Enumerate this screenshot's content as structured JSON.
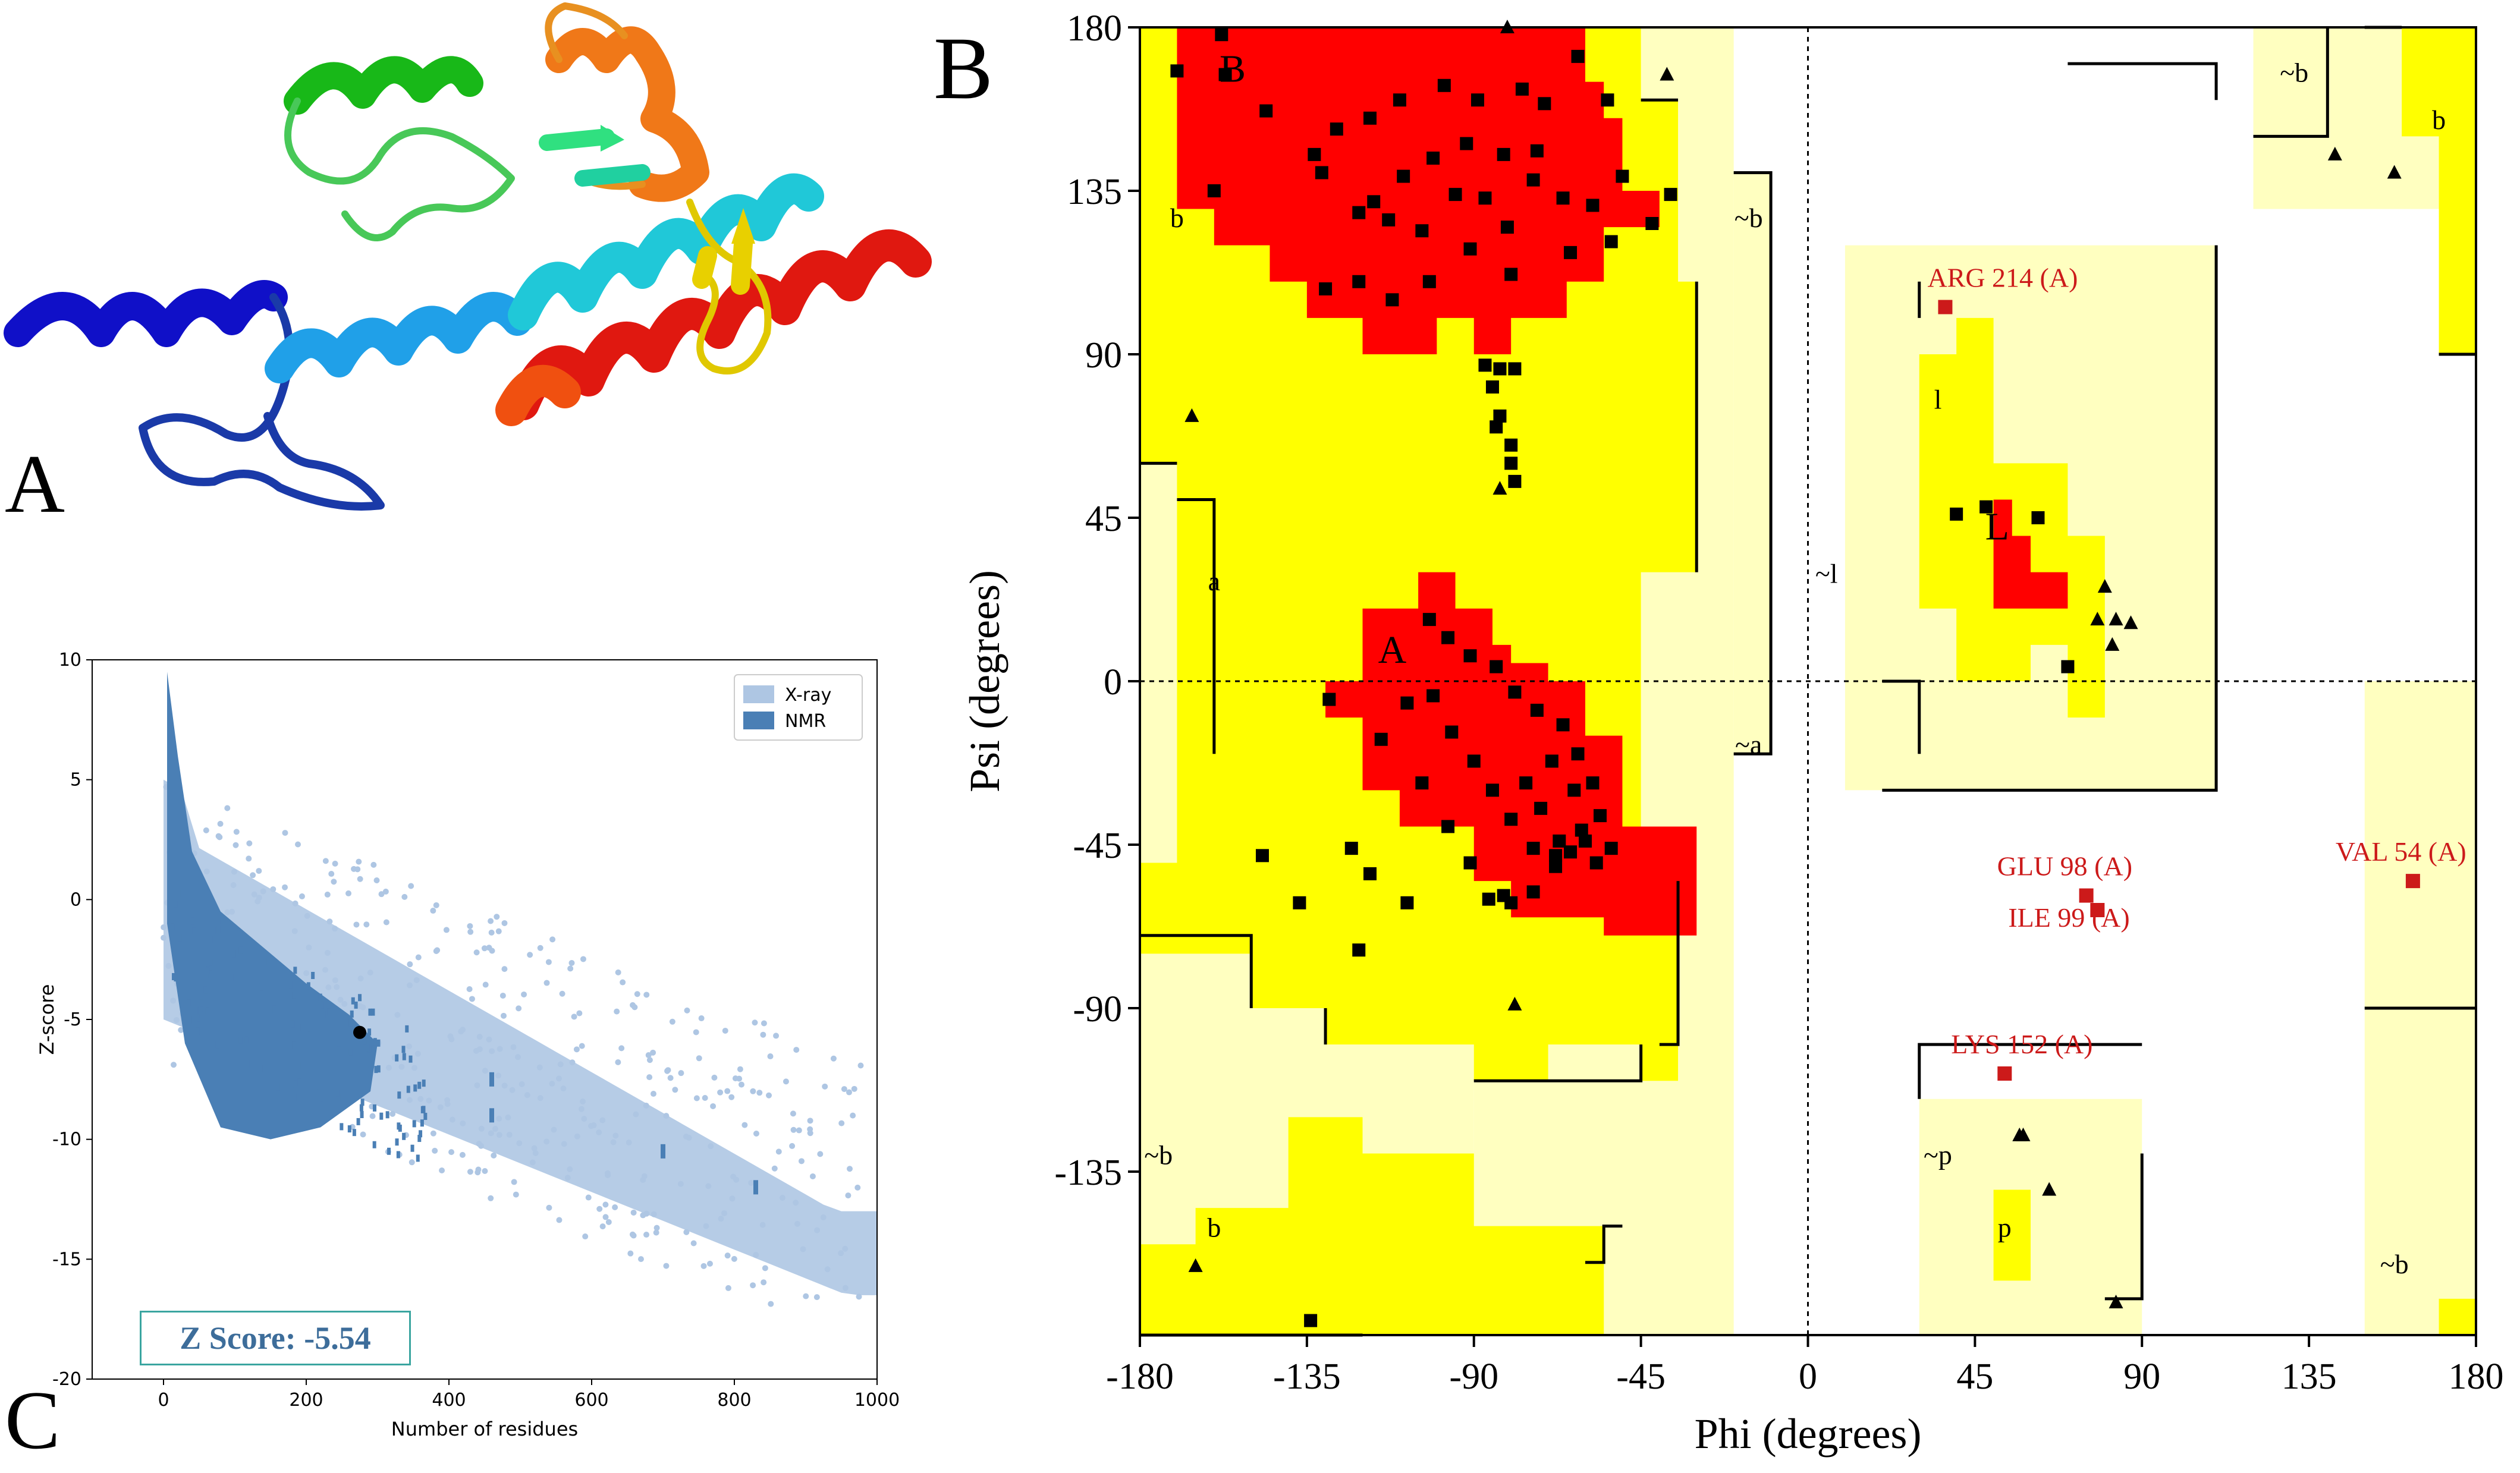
{
  "figure": {
    "panel_labels": {
      "a": "A",
      "b": "B",
      "c": "C"
    },
    "colors": {
      "core": "#ff0000",
      "allowed": "#ffff00",
      "generous": "#ffffc0",
      "outlier": "#cc1a1a",
      "xray": "#aec6e3",
      "nmr": "#4a7fb5",
      "helix_blue": "#1010c8",
      "helix_cyan": "#20c8d8",
      "helix_red": "#e01810",
      "helix_orange": "#f07818",
      "helix_green": "#18b818",
      "strand_yellow": "#e8d000"
    }
  },
  "chart_data": [
    {
      "id": "ramachandran",
      "type": "scatter",
      "xlabel": "Phi (degrees)",
      "ylabel": "Psi (degrees)",
      "xlim": [
        -180,
        180
      ],
      "ylim": [
        -180,
        180
      ],
      "xticks": [
        "-180",
        "-135",
        "-90",
        "-45",
        "0",
        "45",
        "90",
        "135",
        "180"
      ],
      "yticks": [
        "180",
        "135",
        "90",
        "45",
        "0",
        "-45",
        "-90",
        "-135"
      ],
      "region_labels": [
        {
          "text": "B",
          "x": -155,
          "y": 168
        },
        {
          "text": "b",
          "x": -170,
          "y": 128
        },
        {
          "text": "~b",
          "x": -16,
          "y": 128
        },
        {
          "text": "a",
          "x": -160,
          "y": 28
        },
        {
          "text": "A",
          "x": -112,
          "y": 8
        },
        {
          "text": "~a",
          "x": -16,
          "y": -17
        },
        {
          "text": "l",
          "x": 35,
          "y": 78
        },
        {
          "text": "L",
          "x": 51,
          "y": 42
        },
        {
          "text": "~b",
          "x": 131,
          "y": 168
        },
        {
          "text": "b",
          "x": 170,
          "y": 155
        },
        {
          "text": "~l",
          "x": 5,
          "y": 30
        },
        {
          "text": "~p",
          "x": 35,
          "y": -130
        },
        {
          "text": "p",
          "x": 53,
          "y": -150
        },
        {
          "text": "~b",
          "x": -175,
          "y": -130
        },
        {
          "text": "b",
          "x": -160,
          "y": -150
        },
        {
          "text": "~b",
          "x": 158,
          "y": -160
        }
      ],
      "outliers": [
        {
          "label": "ARG 214 (A)",
          "x": 37,
          "y": 103
        },
        {
          "label": "GLU 98 (A)",
          "x": 75,
          "y": -59
        },
        {
          "label": "ILE 99 (A)",
          "x": 78,
          "y": -63
        },
        {
          "label": "VAL 54 (A)",
          "x": 163,
          "y": -55
        },
        {
          "label": "LYS 152 (A)",
          "x": 53,
          "y": -108
        }
      ],
      "points": [
        [
          -170,
          168
        ],
        [
          -158,
          178
        ],
        [
          -157,
          167
        ],
        [
          -160,
          135
        ],
        [
          -146,
          157
        ],
        [
          -133,
          145
        ],
        [
          -131,
          140
        ],
        [
          -127,
          152
        ],
        [
          -118,
          155
        ],
        [
          -110,
          160
        ],
        [
          -98,
          164
        ],
        [
          -89,
          160
        ],
        [
          -77,
          163
        ],
        [
          -62,
          172
        ],
        [
          -54,
          160
        ],
        [
          -71,
          159
        ],
        [
          -73,
          146
        ],
        [
          -82,
          145
        ],
        [
          -92,
          148
        ],
        [
          -101,
          144
        ],
        [
          -109,
          139
        ],
        [
          -117,
          132
        ],
        [
          -121,
          129
        ],
        [
          -113,
          127
        ],
        [
          -104,
          124
        ],
        [
          -95,
          134
        ],
        [
          -87,
          133
        ],
        [
          -81,
          125
        ],
        [
          -74,
          138
        ],
        [
          -66,
          133
        ],
        [
          -58,
          131
        ],
        [
          -50,
          139
        ],
        [
          -42,
          126
        ],
        [
          -37,
          134
        ],
        [
          -53,
          121
        ],
        [
          -64,
          118
        ],
        [
          -80,
          112
        ],
        [
          -91,
          119
        ],
        [
          -102,
          110
        ],
        [
          -112,
          105
        ],
        [
          -121,
          110
        ],
        [
          -130,
          108
        ],
        [
          -87,
          87
        ],
        [
          -85,
          81
        ],
        [
          -83,
          73
        ],
        [
          -84,
          70
        ],
        [
          -80,
          65
        ],
        [
          -80,
          60
        ],
        [
          -79,
          55
        ],
        [
          -79,
          86
        ],
        [
          -83,
          86
        ],
        [
          -129,
          -5
        ],
        [
          -102,
          17
        ],
        [
          -97,
          12
        ],
        [
          -91,
          7
        ],
        [
          -84,
          4
        ],
        [
          -79,
          -3
        ],
        [
          -73,
          -8
        ],
        [
          -66,
          -12
        ],
        [
          -62,
          -20
        ],
        [
          -58,
          -28
        ],
        [
          -56,
          -37
        ],
        [
          -61,
          -41
        ],
        [
          -67,
          -44
        ],
        [
          -72,
          -35
        ],
        [
          -76,
          -28
        ],
        [
          -69,
          -22
        ],
        [
          -63,
          -30
        ],
        [
          -60,
          -44
        ],
        [
          -68,
          -48
        ],
        [
          -74,
          -46
        ],
        [
          -80,
          -38
        ],
        [
          -85,
          -30
        ],
        [
          -90,
          -22
        ],
        [
          -96,
          -14
        ],
        [
          -101,
          -4
        ],
        [
          -108,
          -6
        ],
        [
          -115,
          -16
        ],
        [
          -104,
          -28
        ],
        [
          -97,
          -40
        ],
        [
          -91,
          -50
        ],
        [
          -86,
          -60
        ],
        [
          -80,
          -61
        ],
        [
          -74,
          -58
        ],
        [
          -68,
          -51
        ],
        [
          -64,
          -47
        ],
        [
          -57,
          -50
        ],
        [
          -53,
          -46
        ],
        [
          -123,
          -46
        ],
        [
          -118,
          -53
        ],
        [
          -137,
          -61
        ],
        [
          -147,
          -48
        ],
        [
          -121,
          -74
        ],
        [
          -108,
          -61
        ],
        [
          -134,
          -176
        ],
        [
          40,
          46
        ],
        [
          48,
          48
        ],
        [
          62,
          45
        ],
        [
          70,
          4
        ],
        [
          -82,
          -59
        ]
      ],
      "triangles": [
        [
          -166,
          73
        ],
        [
          -81,
          180
        ],
        [
          -83,
          53
        ],
        [
          -79,
          -89
        ],
        [
          -165,
          -161
        ],
        [
          -38,
          167
        ],
        [
          142,
          145
        ],
        [
          158,
          140
        ],
        [
          80,
          26
        ],
        [
          78,
          17
        ],
        [
          83,
          17
        ],
        [
          87,
          16
        ],
        [
          82,
          10
        ],
        [
          57,
          -125
        ],
        [
          58,
          -125
        ],
        [
          65,
          -140
        ],
        [
          83,
          -171
        ]
      ]
    },
    {
      "id": "zscore",
      "type": "scatter",
      "xlabel": "Number of residues",
      "ylabel": "Z-score",
      "xlim": [
        -100,
        1000
      ],
      "ylim": [
        -20,
        10
      ],
      "xticks": [
        "0",
        "200",
        "400",
        "600",
        "800",
        "1000"
      ],
      "yticks": [
        "10",
        "5",
        "0",
        "-5",
        "-10",
        "-15",
        "-20"
      ],
      "legend": [
        "X-ray",
        "NMR"
      ],
      "legend_position": "top-right",
      "highlight": {
        "x": 275,
        "y": -5.54
      },
      "annotation": "Z Score: -5.54"
    }
  ]
}
